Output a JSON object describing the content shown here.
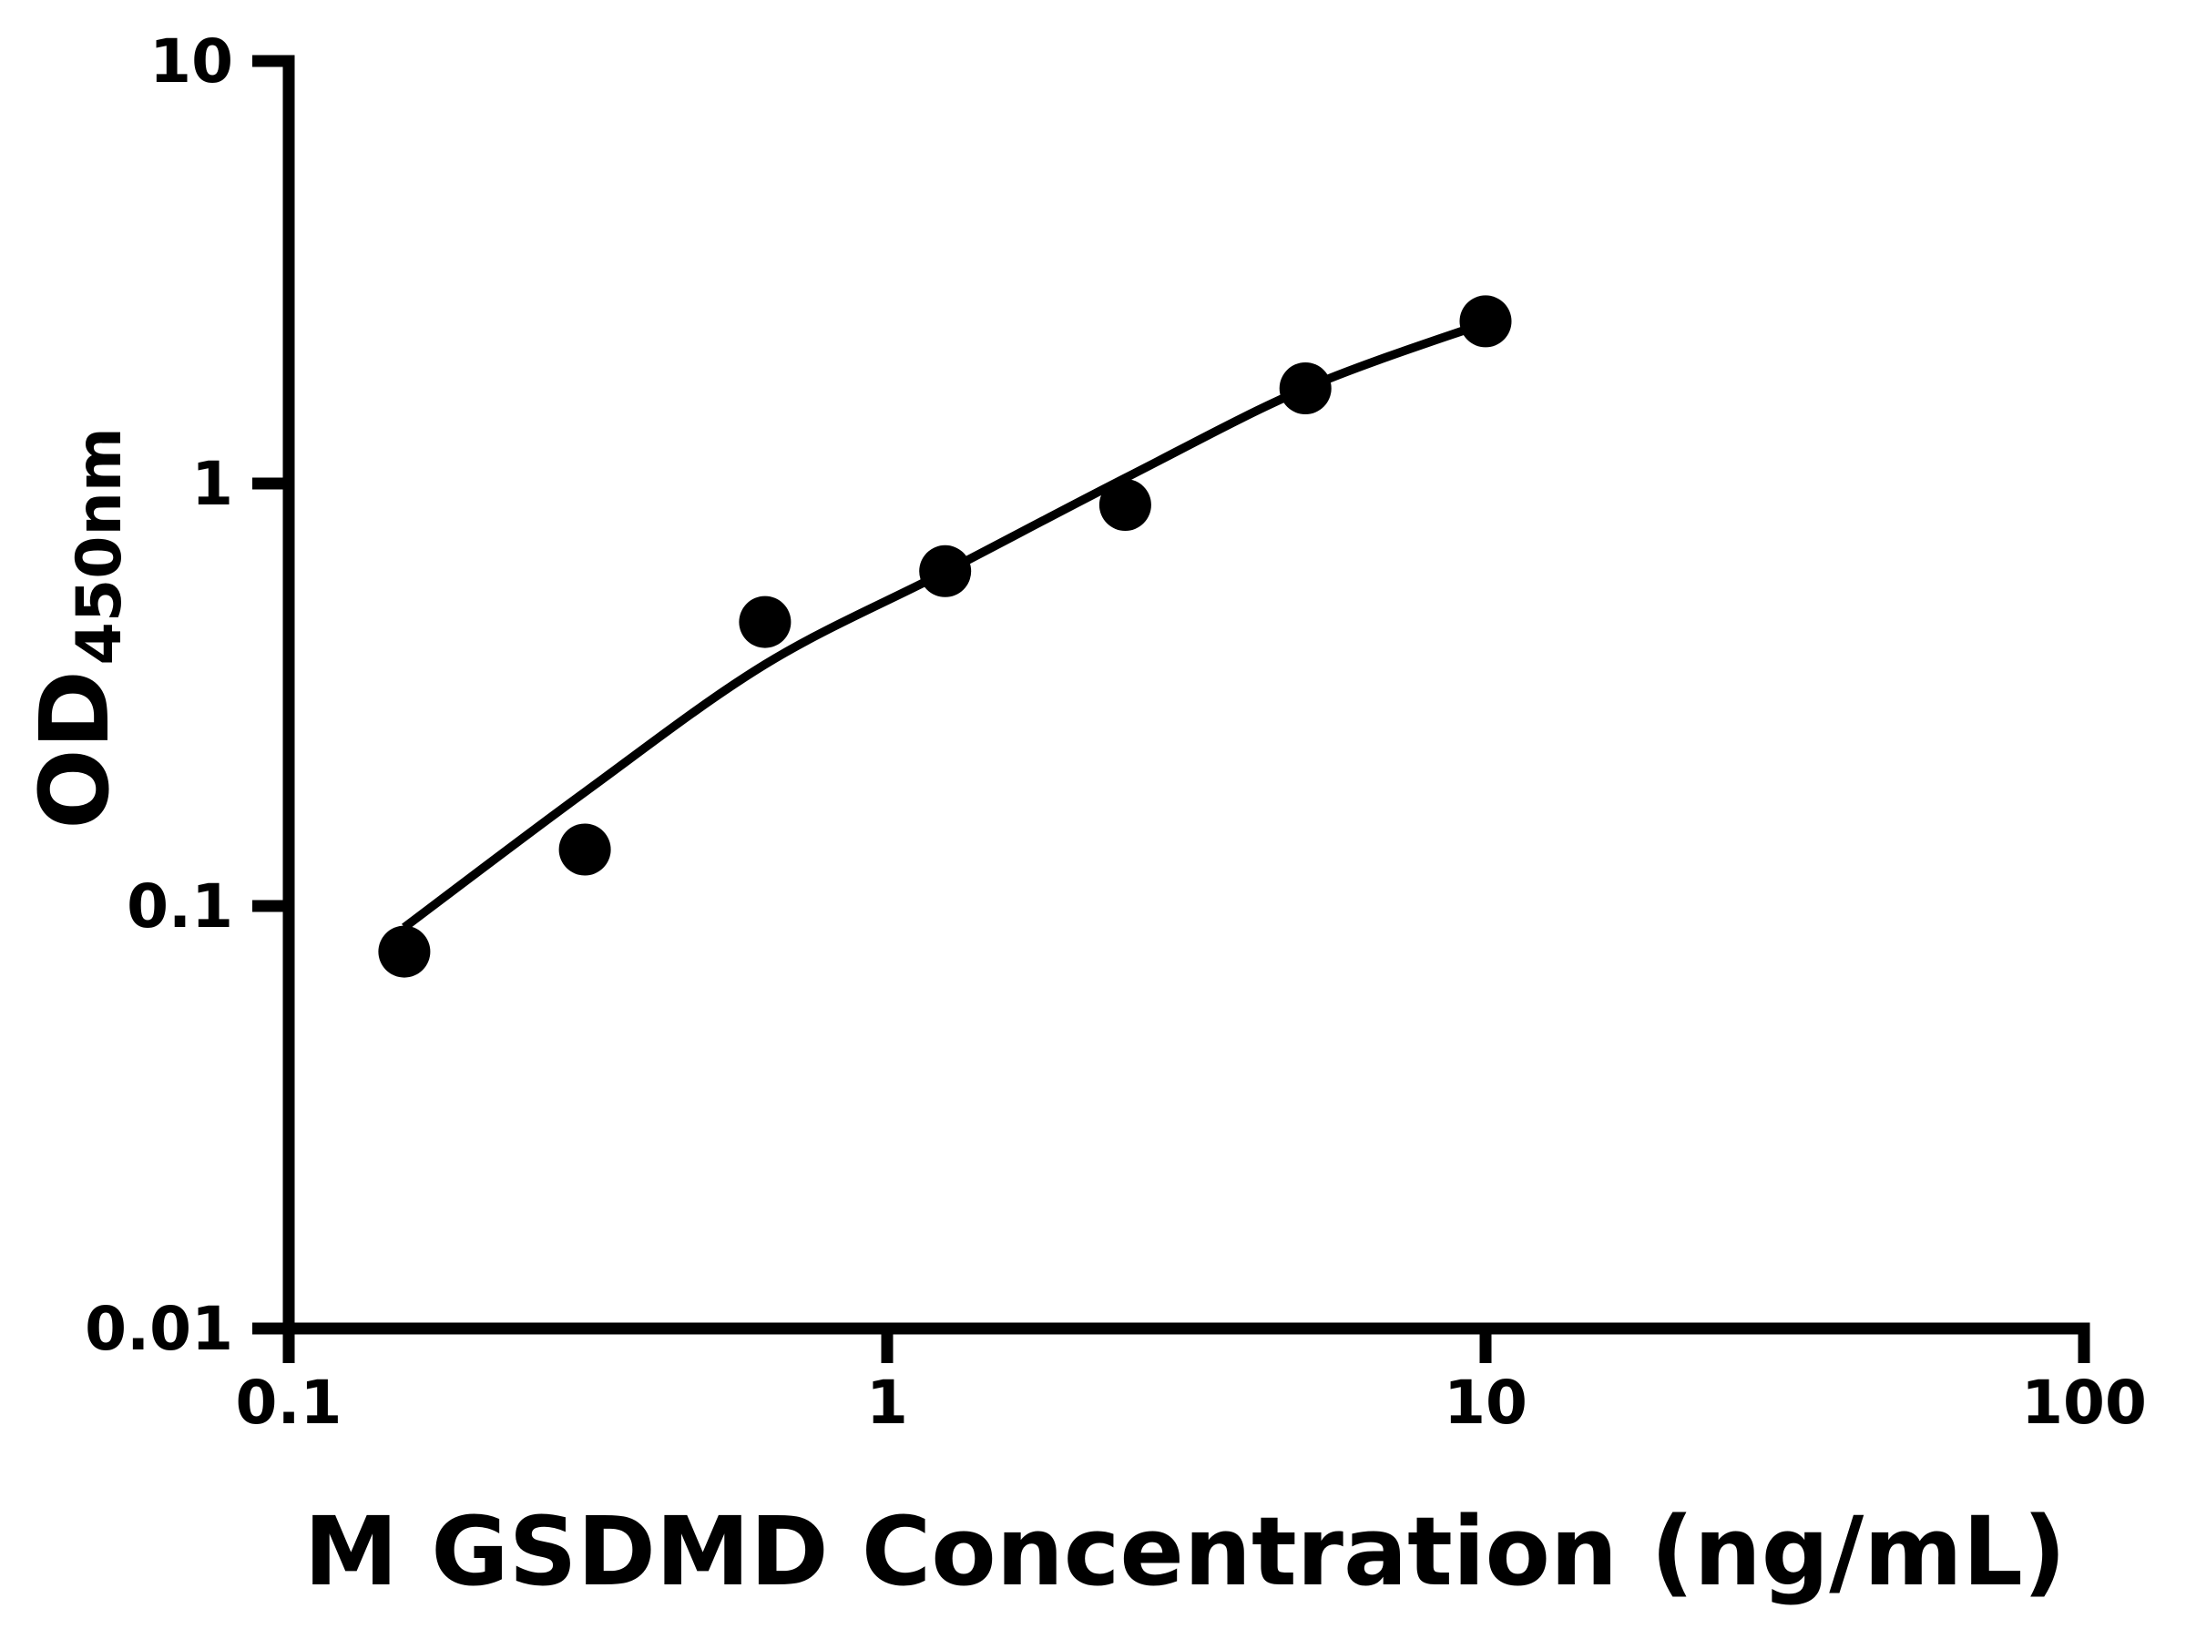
{
  "chart_data": {
    "type": "scatter",
    "title": "",
    "xlabel": "M GSDMD Concentration (ng/mL)",
    "ylabel_main": "OD",
    "ylabel_sub": "450nm",
    "x_scale": "log",
    "y_scale": "log",
    "xlim": [
      0.1,
      100
    ],
    "ylim": [
      0.01,
      10
    ],
    "grid": false,
    "legend_position": "none",
    "x_ticks": [
      {
        "value": 0.1,
        "label": "0.1"
      },
      {
        "value": 1,
        "label": "1"
      },
      {
        "value": 10,
        "label": "10"
      },
      {
        "value": 100,
        "label": "100"
      }
    ],
    "y_ticks": [
      {
        "value": 10,
        "label": "10"
      },
      {
        "value": 1,
        "label": "1"
      },
      {
        "value": 0.1,
        "label": "0.1"
      },
      {
        "value": 0.01,
        "label": "0.01"
      }
    ],
    "series": [
      {
        "name": "standard-points",
        "type": "scatter",
        "x": [
          0.156,
          0.3125,
          0.625,
          1.25,
          2.5,
          5,
          10
        ],
        "y": [
          0.078,
          0.136,
          0.47,
          0.62,
          0.89,
          1.68,
          2.42
        ]
      },
      {
        "name": "fitted-curve",
        "type": "line",
        "x": [
          0.156,
          0.3125,
          0.625,
          1.25,
          2.5,
          5,
          10
        ],
        "y": [
          0.089,
          0.186,
          0.373,
          0.618,
          1.03,
          1.68,
          2.4
        ]
      }
    ],
    "colors": {
      "foreground": "#000000",
      "background": "#ffffff"
    }
  }
}
